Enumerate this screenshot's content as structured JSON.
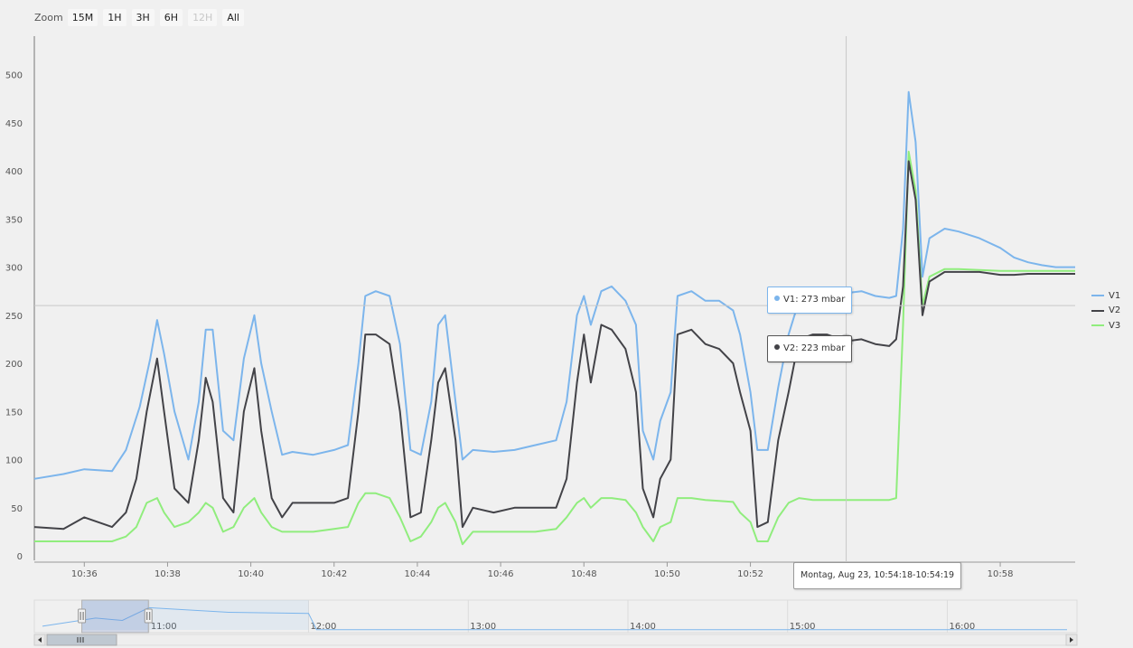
{
  "zoom": {
    "label": "Zoom",
    "buttons": [
      {
        "label": "15M",
        "enabled": true
      },
      {
        "label": "1H",
        "enabled": true
      },
      {
        "label": "3H",
        "enabled": true
      },
      {
        "label": "6H",
        "enabled": true
      },
      {
        "label": "12H",
        "enabled": false
      },
      {
        "label": "All",
        "enabled": true
      }
    ]
  },
  "tooltip": {
    "header": "Montag, Aug 23, 10:54:18-10:54:19",
    "items": [
      {
        "text": "V1: 273 mbar",
        "color": "#7cb5ec"
      },
      {
        "text": "V2: 223 mbar",
        "color": "#434348"
      }
    ]
  },
  "chart_data": {
    "type": "line",
    "x_unit": "time (Aug 23, HH:MM)",
    "xlim": [
      "10:34:48",
      "10:59:48"
    ],
    "ylim": [
      0,
      540
    ],
    "yticks": [
      0,
      50,
      100,
      150,
      200,
      250,
      300,
      350,
      400,
      450,
      500
    ],
    "xticks": [
      "10:36",
      "10:38",
      "10:40",
      "10:42",
      "10:44",
      "10:46",
      "10:48",
      "10:50",
      "10:52",
      "10:54",
      "10:56",
      "10:58"
    ],
    "crosshair": {
      "x": "10:54:18",
      "y": 260
    },
    "legend_position": "right",
    "grid": false,
    "series": [
      {
        "name": "V1",
        "color": "#7cb5ec",
        "points": [
          [
            "10:34:48",
            80
          ],
          [
            "10:35:30",
            85
          ],
          [
            "10:36:00",
            90
          ],
          [
            "10:36:40",
            88
          ],
          [
            "10:37:00",
            110
          ],
          [
            "10:37:20",
            155
          ],
          [
            "10:37:35",
            205
          ],
          [
            "10:37:45",
            245
          ],
          [
            "10:37:55",
            210
          ],
          [
            "10:38:10",
            150
          ],
          [
            "10:38:30",
            100
          ],
          [
            "10:38:45",
            160
          ],
          [
            "10:38:55",
            235
          ],
          [
            "10:39:05",
            235
          ],
          [
            "10:39:20",
            130
          ],
          [
            "10:39:35",
            120
          ],
          [
            "10:39:50",
            205
          ],
          [
            "10:40:05",
            250
          ],
          [
            "10:40:15",
            200
          ],
          [
            "10:40:30",
            150
          ],
          [
            "10:40:45",
            105
          ],
          [
            "10:41:00",
            108
          ],
          [
            "10:41:30",
            105
          ],
          [
            "10:42:00",
            110
          ],
          [
            "10:42:20",
            115
          ],
          [
            "10:42:35",
            200
          ],
          [
            "10:42:45",
            270
          ],
          [
            "10:43:00",
            275
          ],
          [
            "10:43:20",
            270
          ],
          [
            "10:43:35",
            220
          ],
          [
            "10:43:50",
            110
          ],
          [
            "10:44:05",
            105
          ],
          [
            "10:44:20",
            160
          ],
          [
            "10:44:30",
            240
          ],
          [
            "10:44:40",
            250
          ],
          [
            "10:44:55",
            160
          ],
          [
            "10:45:05",
            100
          ],
          [
            "10:45:20",
            110
          ],
          [
            "10:45:50",
            108
          ],
          [
            "10:46:20",
            110
          ],
          [
            "10:46:50",
            115
          ],
          [
            "10:47:20",
            120
          ],
          [
            "10:47:35",
            160
          ],
          [
            "10:47:50",
            250
          ],
          [
            "10:48:00",
            270
          ],
          [
            "10:48:10",
            240
          ],
          [
            "10:48:25",
            275
          ],
          [
            "10:48:40",
            280
          ],
          [
            "10:49:00",
            265
          ],
          [
            "10:49:15",
            240
          ],
          [
            "10:49:25",
            130
          ],
          [
            "10:49:40",
            100
          ],
          [
            "10:49:50",
            140
          ],
          [
            "10:50:05",
            170
          ],
          [
            "10:50:15",
            270
          ],
          [
            "10:50:35",
            275
          ],
          [
            "10:50:55",
            265
          ],
          [
            "10:51:15",
            265
          ],
          [
            "10:51:35",
            255
          ],
          [
            "10:51:45",
            230
          ],
          [
            "10:52:00",
            170
          ],
          [
            "10:52:10",
            110
          ],
          [
            "10:52:25",
            110
          ],
          [
            "10:52:40",
            175
          ],
          [
            "10:52:55",
            230
          ],
          [
            "10:53:10",
            265
          ],
          [
            "10:53:30",
            265
          ],
          [
            "10:53:50",
            270
          ],
          [
            "10:54:18",
            273
          ],
          [
            "10:54:40",
            275
          ],
          [
            "10:55:00",
            270
          ],
          [
            "10:55:20",
            268
          ],
          [
            "10:55:30",
            270
          ],
          [
            "10:55:40",
            340
          ],
          [
            "10:55:48",
            482
          ],
          [
            "10:55:58",
            430
          ],
          [
            "10:56:08",
            290
          ],
          [
            "10:56:18",
            330
          ],
          [
            "10:56:40",
            340
          ],
          [
            "10:57:00",
            337
          ],
          [
            "10:57:30",
            330
          ],
          [
            "10:58:00",
            320
          ],
          [
            "10:58:20",
            310
          ],
          [
            "10:58:40",
            305
          ],
          [
            "10:59:00",
            302
          ],
          [
            "10:59:20",
            300
          ],
          [
            "10:59:48",
            300
          ]
        ]
      },
      {
        "name": "V2",
        "color": "#434348",
        "points": [
          [
            "10:34:48",
            30
          ],
          [
            "10:35:30",
            28
          ],
          [
            "10:36:00",
            40
          ],
          [
            "10:36:40",
            30
          ],
          [
            "10:37:00",
            45
          ],
          [
            "10:37:15",
            80
          ],
          [
            "10:37:30",
            150
          ],
          [
            "10:37:45",
            205
          ],
          [
            "10:37:55",
            150
          ],
          [
            "10:38:10",
            70
          ],
          [
            "10:38:30",
            55
          ],
          [
            "10:38:45",
            120
          ],
          [
            "10:38:55",
            185
          ],
          [
            "10:39:05",
            160
          ],
          [
            "10:39:20",
            60
          ],
          [
            "10:39:35",
            45
          ],
          [
            "10:39:50",
            150
          ],
          [
            "10:40:05",
            195
          ],
          [
            "10:40:15",
            130
          ],
          [
            "10:40:30",
            60
          ],
          [
            "10:40:45",
            40
          ],
          [
            "10:41:00",
            55
          ],
          [
            "10:41:30",
            55
          ],
          [
            "10:42:00",
            55
          ],
          [
            "10:42:20",
            60
          ],
          [
            "10:42:35",
            150
          ],
          [
            "10:42:45",
            230
          ],
          [
            "10:43:00",
            230
          ],
          [
            "10:43:20",
            220
          ],
          [
            "10:43:35",
            150
          ],
          [
            "10:43:50",
            40
          ],
          [
            "10:44:05",
            45
          ],
          [
            "10:44:20",
            120
          ],
          [
            "10:44:30",
            180
          ],
          [
            "10:44:40",
            195
          ],
          [
            "10:44:55",
            120
          ],
          [
            "10:45:05",
            30
          ],
          [
            "10:45:20",
            50
          ],
          [
            "10:45:50",
            45
          ],
          [
            "10:46:20",
            50
          ],
          [
            "10:46:50",
            50
          ],
          [
            "10:47:20",
            50
          ],
          [
            "10:47:35",
            80
          ],
          [
            "10:47:50",
            180
          ],
          [
            "10:48:00",
            230
          ],
          [
            "10:48:10",
            180
          ],
          [
            "10:48:25",
            240
          ],
          [
            "10:48:40",
            235
          ],
          [
            "10:49:00",
            215
          ],
          [
            "10:49:15",
            170
          ],
          [
            "10:49:25",
            70
          ],
          [
            "10:49:40",
            40
          ],
          [
            "10:49:50",
            80
          ],
          [
            "10:50:05",
            100
          ],
          [
            "10:50:15",
            230
          ],
          [
            "10:50:35",
            235
          ],
          [
            "10:50:55",
            220
          ],
          [
            "10:51:15",
            215
          ],
          [
            "10:51:35",
            200
          ],
          [
            "10:51:45",
            170
          ],
          [
            "10:52:00",
            130
          ],
          [
            "10:52:10",
            30
          ],
          [
            "10:52:25",
            35
          ],
          [
            "10:52:40",
            120
          ],
          [
            "10:52:55",
            170
          ],
          [
            "10:53:10",
            225
          ],
          [
            "10:53:30",
            230
          ],
          [
            "10:53:50",
            230
          ],
          [
            "10:54:18",
            223
          ],
          [
            "10:54:40",
            225
          ],
          [
            "10:55:00",
            220
          ],
          [
            "10:55:20",
            218
          ],
          [
            "10:55:30",
            225
          ],
          [
            "10:55:40",
            280
          ],
          [
            "10:55:48",
            410
          ],
          [
            "10:55:58",
            370
          ],
          [
            "10:56:08",
            250
          ],
          [
            "10:56:18",
            285
          ],
          [
            "10:56:40",
            295
          ],
          [
            "10:57:00",
            295
          ],
          [
            "10:57:30",
            295
          ],
          [
            "10:58:00",
            292
          ],
          [
            "10:58:20",
            292
          ],
          [
            "10:58:40",
            293
          ],
          [
            "10:59:00",
            293
          ],
          [
            "10:59:20",
            293
          ],
          [
            "10:59:48",
            293
          ]
        ]
      },
      {
        "name": "V3",
        "color": "#90ed7d",
        "points": [
          [
            "10:34:48",
            15
          ],
          [
            "10:35:30",
            15
          ],
          [
            "10:36:00",
            15
          ],
          [
            "10:36:40",
            15
          ],
          [
            "10:37:00",
            20
          ],
          [
            "10:37:15",
            30
          ],
          [
            "10:37:30",
            55
          ],
          [
            "10:37:45",
            60
          ],
          [
            "10:37:55",
            45
          ],
          [
            "10:38:10",
            30
          ],
          [
            "10:38:30",
            35
          ],
          [
            "10:38:45",
            45
          ],
          [
            "10:38:55",
            55
          ],
          [
            "10:39:05",
            50
          ],
          [
            "10:39:20",
            25
          ],
          [
            "10:39:35",
            30
          ],
          [
            "10:39:50",
            50
          ],
          [
            "10:40:05",
            60
          ],
          [
            "10:40:15",
            45
          ],
          [
            "10:40:30",
            30
          ],
          [
            "10:40:45",
            25
          ],
          [
            "10:41:00",
            25
          ],
          [
            "10:41:30",
            25
          ],
          [
            "10:42:00",
            28
          ],
          [
            "10:42:20",
            30
          ],
          [
            "10:42:35",
            55
          ],
          [
            "10:42:45",
            65
          ],
          [
            "10:43:00",
            65
          ],
          [
            "10:43:20",
            60
          ],
          [
            "10:43:35",
            40
          ],
          [
            "10:43:50",
            15
          ],
          [
            "10:44:05",
            20
          ],
          [
            "10:44:20",
            35
          ],
          [
            "10:44:30",
            50
          ],
          [
            "10:44:40",
            55
          ],
          [
            "10:44:55",
            35
          ],
          [
            "10:45:05",
            12
          ],
          [
            "10:45:20",
            25
          ],
          [
            "10:45:50",
            25
          ],
          [
            "10:46:20",
            25
          ],
          [
            "10:46:50",
            25
          ],
          [
            "10:47:20",
            28
          ],
          [
            "10:47:35",
            40
          ],
          [
            "10:47:50",
            55
          ],
          [
            "10:48:00",
            60
          ],
          [
            "10:48:10",
            50
          ],
          [
            "10:48:25",
            60
          ],
          [
            "10:48:40",
            60
          ],
          [
            "10:49:00",
            58
          ],
          [
            "10:49:15",
            45
          ],
          [
            "10:49:25",
            30
          ],
          [
            "10:49:40",
            15
          ],
          [
            "10:49:50",
            30
          ],
          [
            "10:50:05",
            35
          ],
          [
            "10:50:15",
            60
          ],
          [
            "10:50:35",
            60
          ],
          [
            "10:50:55",
            58
          ],
          [
            "10:51:15",
            57
          ],
          [
            "10:51:35",
            56
          ],
          [
            "10:51:45",
            45
          ],
          [
            "10:52:00",
            35
          ],
          [
            "10:52:10",
            15
          ],
          [
            "10:52:25",
            15
          ],
          [
            "10:52:40",
            40
          ],
          [
            "10:52:55",
            55
          ],
          [
            "10:53:10",
            60
          ],
          [
            "10:53:30",
            58
          ],
          [
            "10:53:50",
            58
          ],
          [
            "10:54:18",
            58
          ],
          [
            "10:54:40",
            58
          ],
          [
            "10:55:00",
            58
          ],
          [
            "10:55:20",
            58
          ],
          [
            "10:55:30",
            60
          ],
          [
            "10:55:40",
            240
          ],
          [
            "10:55:48",
            420
          ],
          [
            "10:55:58",
            380
          ],
          [
            "10:56:08",
            260
          ],
          [
            "10:56:18",
            290
          ],
          [
            "10:56:40",
            298
          ],
          [
            "10:57:00",
            298
          ],
          [
            "10:57:30",
            297
          ],
          [
            "10:58:00",
            296
          ],
          [
            "10:58:20",
            296
          ],
          [
            "10:58:40",
            296
          ],
          [
            "10:59:00",
            296
          ],
          [
            "10:59:20",
            296
          ],
          [
            "10:59:48",
            296
          ]
        ]
      }
    ]
  },
  "navigator": {
    "labels": [
      "11:00",
      "12:00",
      "13:00",
      "14:00",
      "15:00",
      "16:00"
    ],
    "xlim": [
      "10:20",
      "16:45"
    ],
    "selection": [
      "10:34:48",
      "10:59:48"
    ],
    "series_points": [
      [
        "10:20",
        80
      ],
      [
        "10:40",
        220
      ],
      [
        "10:50",
        180
      ],
      [
        "11:00",
        400
      ],
      [
        "11:30",
        320
      ],
      [
        "12:00",
        300
      ],
      [
        "12:03",
        20
      ],
      [
        "16:45",
        20
      ]
    ]
  }
}
